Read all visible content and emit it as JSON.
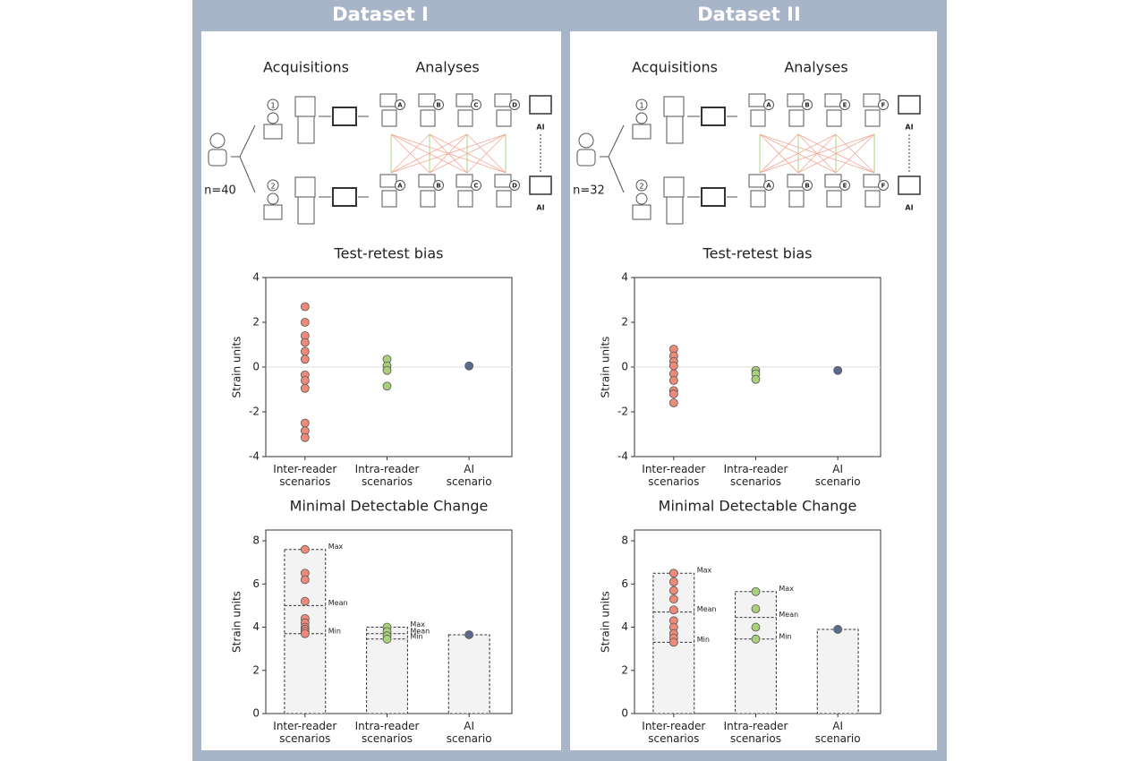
{
  "panels": [
    {
      "title": "Dataset I",
      "acquisitions": "Acquisitions",
      "analyses": "Analyses",
      "n": "n=40",
      "operators": [
        "1",
        "2"
      ],
      "readers": [
        "A",
        "B",
        "C",
        "D"
      ],
      "ai": "AI"
    },
    {
      "title": "Dataset II",
      "acquisitions": "Acquisitions",
      "analyses": "Analyses",
      "n": "n=32",
      "operators": [
        "1",
        "2"
      ],
      "readers": [
        "A",
        "B",
        "E",
        "F"
      ],
      "ai": "AI"
    }
  ],
  "chart_data": [
    {
      "type": "strip",
      "title": "Test-retest bias",
      "ylabel": "Strain units",
      "categories": [
        "Inter-reader scenarios",
        "Intra-reader scenarios",
        "AI scenario"
      ],
      "values": [
        [
          2.7,
          2.0,
          1.4,
          1.1,
          0.7,
          0.35,
          -0.35,
          -0.6,
          -0.95,
          -2.5,
          -2.85,
          -3.15
        ],
        [
          0.35,
          0.05,
          -0.15,
          -0.85
        ],
        [
          0.05
        ]
      ],
      "colors": [
        "#f08a78",
        "#a9d17a",
        "#5a6a8a"
      ],
      "ylim": [
        -4,
        4
      ],
      "yticks": [
        -4,
        -2,
        0,
        2,
        4
      ],
      "refline": 0
    },
    {
      "type": "mdc",
      "title": "Minimal Detectable Change",
      "ylabel": "Strain units",
      "categories": [
        "Inter-reader scenarios",
        "Intra-reader scenarios",
        "AI scenario"
      ],
      "values": [
        [
          7.6,
          6.5,
          6.2,
          5.2,
          4.4,
          4.2,
          4.0,
          3.9,
          3.8,
          3.7
        ],
        [
          4.0,
          3.8,
          3.6,
          3.45
        ],
        [
          3.65
        ]
      ],
      "max": [
        7.6,
        4.0,
        null
      ],
      "mean": [
        5.0,
        3.7,
        null
      ],
      "min": [
        3.7,
        3.45,
        null
      ],
      "stat_labels": [
        "Max",
        "Mean",
        "Min"
      ],
      "colors": [
        "#f08a78",
        "#a9d17a",
        "#5a6a8a"
      ],
      "ylim": [
        0,
        8.5
      ],
      "yticks": [
        0,
        2,
        4,
        6,
        8
      ]
    },
    {
      "type": "strip",
      "title": "Test-retest bias",
      "ylabel": "Strain units",
      "categories": [
        "Inter-reader scenarios",
        "Intra-reader scenarios",
        "AI scenario"
      ],
      "values": [
        [
          0.8,
          0.5,
          0.25,
          0.05,
          -0.3,
          -0.6,
          -1.05,
          -1.2,
          -1.6
        ],
        [
          -0.15,
          -0.3,
          -0.55
        ],
        [
          -0.15
        ]
      ],
      "colors": [
        "#f08a78",
        "#a9d17a",
        "#5a6a8a"
      ],
      "ylim": [
        -4,
        4
      ],
      "yticks": [
        -4,
        -2,
        0,
        2,
        4
      ],
      "refline": 0
    },
    {
      "type": "mdc",
      "title": "Minimal Detectable Change",
      "ylabel": "Strain units",
      "categories": [
        "Inter-reader scenarios",
        "Intra-reader scenarios",
        "AI scenario"
      ],
      "values": [
        [
          6.5,
          6.1,
          5.7,
          5.3,
          4.8,
          4.3,
          4.0,
          3.7,
          3.5,
          3.3
        ],
        [
          5.65,
          4.85,
          4.0,
          3.45
        ],
        [
          3.9
        ]
      ],
      "max": [
        6.5,
        5.65,
        null
      ],
      "mean": [
        4.7,
        4.45,
        null
      ],
      "min": [
        3.3,
        3.45,
        null
      ],
      "stat_labels": [
        "Max",
        "Mean",
        "Min"
      ],
      "colors": [
        "#f08a78",
        "#a9d17a",
        "#5a6a8a"
      ],
      "ylim": [
        0,
        8.5
      ],
      "yticks": [
        0,
        2,
        4,
        6,
        8
      ]
    }
  ]
}
